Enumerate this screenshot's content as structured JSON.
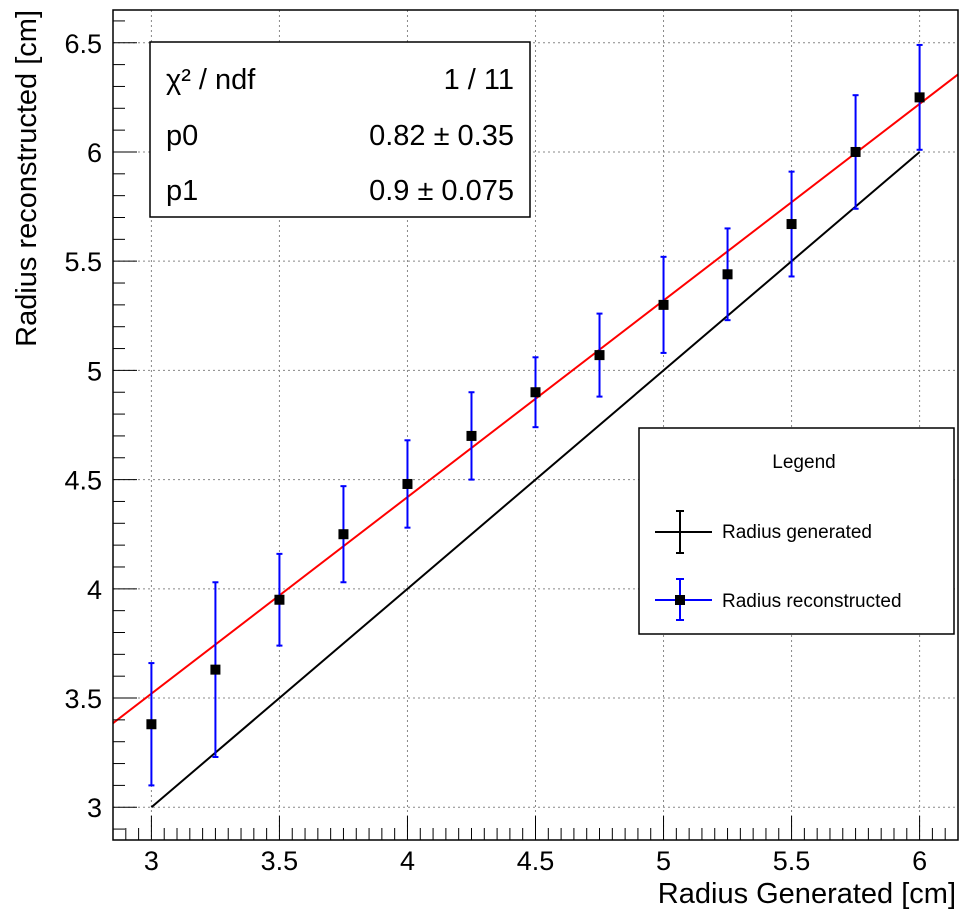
{
  "chart_data": {
    "type": "scatter",
    "xlabel": "Radius Generated [cm]",
    "ylabel": "Radius reconstructed [cm]",
    "xlim": [
      2.85,
      6.15
    ],
    "ylim": [
      2.85,
      6.65
    ],
    "grid": true,
    "x_ticks": [
      3,
      3.5,
      4,
      4.5,
      5,
      5.5,
      6
    ],
    "y_ticks": [
      3,
      3.5,
      4,
      4.5,
      5,
      5.5,
      6,
      6.5
    ],
    "x_tick_labels": [
      "3",
      "3.5",
      "4",
      "4.5",
      "5",
      "5.5",
      "6"
    ],
    "y_tick_labels": [
      "3",
      "3.5",
      "4",
      "4.5",
      "5",
      "5.5",
      "6",
      "6.5"
    ],
    "series": [
      {
        "name": "Radius generated",
        "style": "line",
        "color": "#000000",
        "x": [
          3,
          6
        ],
        "y": [
          3,
          6
        ]
      },
      {
        "name": "Radius reconstructed",
        "style": "points-with-errors",
        "color": "#0000ff",
        "marker_color": "#000000",
        "x": [
          3,
          3.25,
          3.5,
          3.75,
          4,
          4.25,
          4.5,
          4.75,
          5,
          5.25,
          5.5,
          5.75,
          6
        ],
        "y": [
          3.38,
          3.63,
          3.95,
          4.25,
          4.48,
          4.7,
          4.9,
          5.07,
          5.3,
          5.44,
          5.67,
          6.0,
          6.25
        ],
        "yerr": [
          0.28,
          0.4,
          0.21,
          0.22,
          0.2,
          0.2,
          0.16,
          0.19,
          0.22,
          0.21,
          0.24,
          0.26,
          0.24
        ]
      }
    ],
    "fit": {
      "color": "#ff0000",
      "function": "p0 + p1*x",
      "p0": 0.82,
      "p1": 0.9,
      "x_range": [
        2.85,
        6.15
      ]
    },
    "stats_box": {
      "rows": [
        {
          "label": "χ² / ndf",
          "value": "1 / 11"
        },
        {
          "label": "p0",
          "value": "0.82 ±  0.35"
        },
        {
          "label": "p1",
          "value": "0.9 ± 0.075"
        }
      ],
      "placement": "top-left"
    },
    "legend": {
      "title": "Legend",
      "placement": "right",
      "entries": [
        "Radius generated",
        "Radius reconstructed"
      ]
    }
  }
}
